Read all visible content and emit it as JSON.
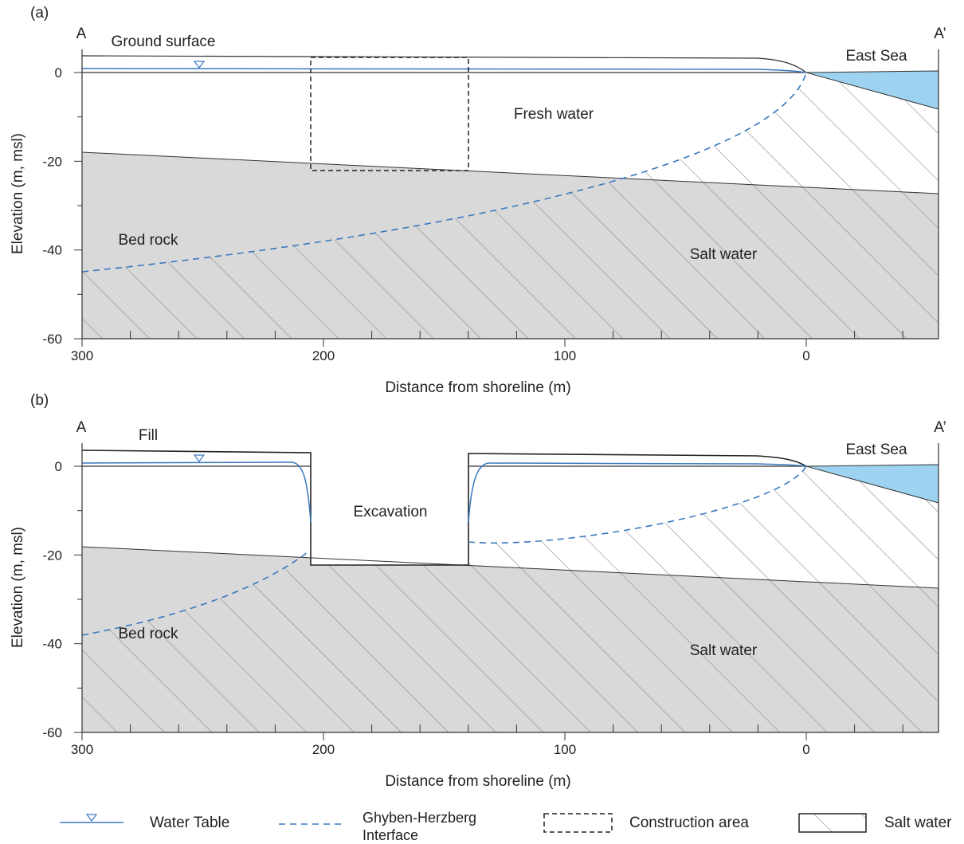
{
  "panels": [
    {
      "label": "(a)",
      "left_end": "A",
      "right_end": "A’",
      "y_axis_title": "Elevation (m, msl)",
      "x_axis_title": "Distance from shoreline (m)",
      "yticks": [
        0,
        -20,
        -40,
        -60
      ],
      "xticks": [
        300,
        200,
        100,
        0
      ],
      "region_labels": [
        "Ground surface",
        "East Sea",
        "Fresh water",
        "Bed rock",
        "Salt water"
      ]
    },
    {
      "label": "(b)",
      "left_end": "A",
      "right_end": "A’",
      "y_axis_title": "Elevation (m, msl)",
      "x_axis_title": "Distance from shoreline (m)",
      "yticks": [
        0,
        -20,
        -40,
        -60
      ],
      "xticks": [
        300,
        200,
        100,
        0
      ],
      "region_labels": [
        "Fill",
        "East Sea",
        "Excavation",
        "Bed rock",
        "Salt water"
      ]
    }
  ],
  "legend": [
    "Water Table",
    "Ghyben-Herzberg Interface",
    "Construction area",
    "Salt water"
  ]
}
